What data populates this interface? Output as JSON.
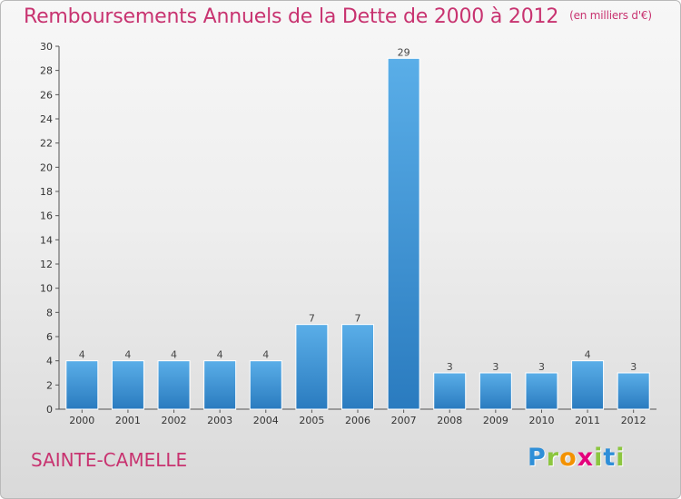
{
  "header": {
    "title": "Remboursements Annuels de la Dette de 2000 à 2012",
    "unit": "(en milliers d'€)"
  },
  "footer": {
    "commune": "SAINTE-CAMELLE",
    "logo_letters": [
      "P",
      "r",
      "o",
      "x",
      "i",
      "t",
      "i"
    ],
    "logo_colors": [
      "#2f8fd8",
      "#8cc63f",
      "#f39200",
      "#e4007c",
      "#8cc63f",
      "#2f8fd8",
      "#8cc63f"
    ]
  },
  "colors": {
    "title": "#c83370",
    "bar_light": "#5aaee8",
    "bar_dark": "#2a7bbf",
    "grid": "#cfcfcf"
  },
  "chart_data": {
    "type": "bar",
    "title": "Remboursements Annuels de la Dette de 2000 à 2012",
    "xlabel": "",
    "ylabel": "",
    "categories": [
      "2000",
      "2001",
      "2002",
      "2003",
      "2004",
      "2005",
      "2006",
      "2007",
      "2008",
      "2009",
      "2010",
      "2011",
      "2012"
    ],
    "values": [
      4,
      4,
      4,
      4,
      4,
      7,
      7,
      29,
      3,
      3,
      3,
      4,
      3
    ],
    "ylim": [
      0,
      30
    ],
    "yticks": [
      0,
      2,
      4,
      6,
      8,
      10,
      12,
      14,
      16,
      18,
      20,
      22,
      24,
      26,
      28,
      30
    ],
    "grid": false,
    "legend": "none"
  }
}
